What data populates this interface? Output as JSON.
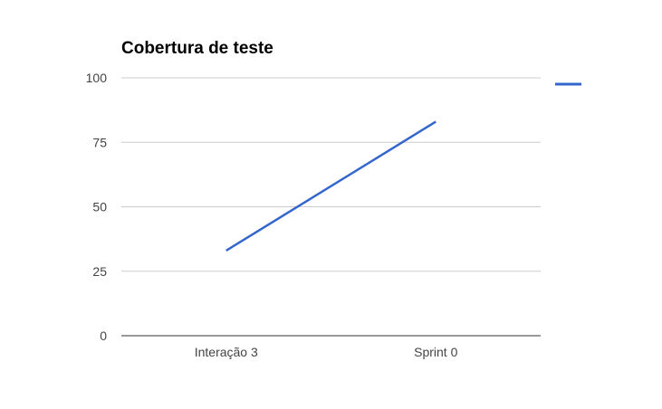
{
  "chart_data": {
    "type": "line",
    "title": "Cobertura de teste",
    "xlabel": "",
    "ylabel": "",
    "categories": [
      "Interação 3",
      "Sprint 0"
    ],
    "series": [
      {
        "values": [
          33,
          83
        ],
        "color": "#3366cc"
      }
    ],
    "ylim": [
      0,
      100
    ],
    "yticks": [
      0,
      25,
      50,
      75,
      100
    ],
    "grid": true,
    "legend": "right",
    "colors": {
      "grid": "#cccccc",
      "axis": "#333333",
      "series": "#3366cc"
    }
  }
}
